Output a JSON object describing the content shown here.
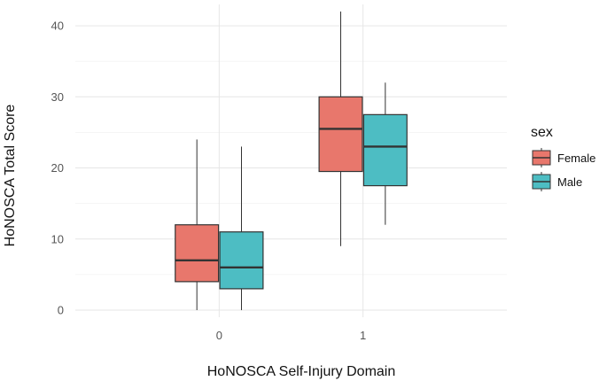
{
  "chart_data": {
    "type": "box",
    "xlabel": "HoNOSCA Self-Injury Domain",
    "ylabel": "HoNOSCA Total Score",
    "categories": [
      "0",
      "1"
    ],
    "ylim": [
      -1,
      43
    ],
    "yticks": [
      0,
      10,
      20,
      30,
      40
    ],
    "grid": true,
    "legend": {
      "title": "sex",
      "position": "right"
    },
    "series": [
      {
        "name": "Female",
        "color": "#E8776C",
        "boxes": [
          {
            "category": "0",
            "min": 0,
            "q1": 4,
            "median": 7,
            "q3": 12,
            "max": 24
          },
          {
            "category": "1",
            "min": 9,
            "q1": 19.5,
            "median": 25.5,
            "q3": 30,
            "max": 42
          }
        ]
      },
      {
        "name": "Male",
        "color": "#4DBDC3",
        "boxes": [
          {
            "category": "0",
            "min": 0,
            "q1": 3,
            "median": 6,
            "q3": 11,
            "max": 23
          },
          {
            "category": "1",
            "min": 12,
            "q1": 17.5,
            "median": 23,
            "q3": 27.5,
            "max": 32
          }
        ]
      }
    ]
  }
}
